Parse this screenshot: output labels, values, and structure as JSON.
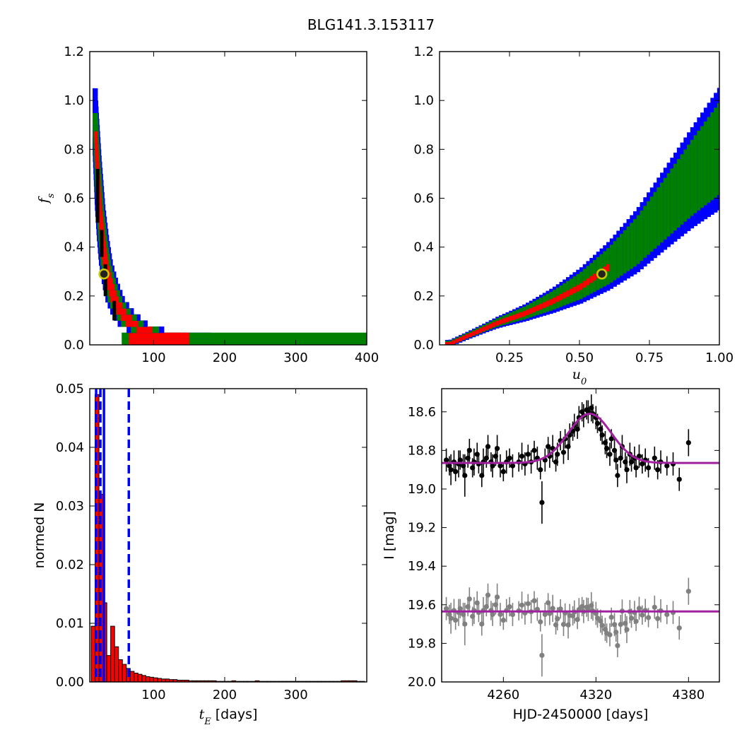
{
  "title": "BLG141.3.153117",
  "chart_data": [
    {
      "id": "fs-vs-tE",
      "type": "heatmap",
      "xlabel": "",
      "ylabel": "f_s",
      "ylabel_parts": {
        "main": "f",
        "sub": "s"
      },
      "xlim": [
        10,
        400
      ],
      "ylim": [
        0,
        1.2
      ],
      "xticks": [
        100,
        200,
        300,
        400
      ],
      "yticks": [
        0.0,
        0.2,
        0.4,
        0.6,
        0.8,
        1.0,
        1.2
      ],
      "colors": {
        "outer": "#0000ff",
        "middle": "#008000",
        "inner": "#ff0000",
        "core": "#000000"
      },
      "ridge": [
        [
          16,
          1.0
        ],
        [
          20,
          0.75
        ],
        [
          24,
          0.55
        ],
        [
          28,
          0.42
        ],
        [
          32,
          0.32
        ],
        [
          38,
          0.24
        ],
        [
          45,
          0.17
        ],
        [
          55,
          0.12
        ],
        [
          70,
          0.07
        ],
        [
          90,
          0.045
        ],
        [
          120,
          0.025
        ],
        [
          160,
          0.015
        ],
        [
          200,
          0.01
        ],
        [
          300,
          0.008
        ],
        [
          400,
          0.007
        ]
      ],
      "best_fit": {
        "x": 30,
        "y": 0.29
      }
    },
    {
      "id": "fs-vs-u0",
      "type": "heatmap",
      "xlabel": "u_0",
      "xlabel_parts": {
        "main": "u",
        "sub": "0"
      },
      "ylabel": "",
      "xlim": [
        0,
        1.0
      ],
      "ylim": [
        0,
        1.2
      ],
      "xticks": [
        0.25,
        0.5,
        0.75,
        1.0
      ],
      "xtick_labels": [
        "0.25",
        "0.50",
        "0.75",
        "1.00"
      ],
      "yticks": [
        0.0,
        0.2,
        0.4,
        0.6,
        0.8,
        1.0,
        1.2
      ],
      "colors": {
        "outer": "#0000ff",
        "middle": "#008000",
        "inner": "#ff0000"
      },
      "ridge_points": [
        [
          0.03,
          0.005
        ],
        [
          0.1,
          0.04
        ],
        [
          0.2,
          0.09
        ],
        [
          0.3,
          0.13
        ],
        [
          0.4,
          0.18
        ],
        [
          0.5,
          0.24
        ],
        [
          0.6,
          0.32
        ],
        [
          0.7,
          0.42
        ],
        [
          0.8,
          0.55
        ],
        [
          0.9,
          0.68
        ],
        [
          1.0,
          0.8
        ]
      ],
      "best_fit": {
        "x": 0.58,
        "y": 0.29
      }
    },
    {
      "id": "tE-histogram",
      "type": "bar",
      "xlabel": "t_E [days]",
      "xlabel_parts": {
        "main": "t",
        "sub": "E",
        "rest": " [days]"
      },
      "ylabel": "normed N",
      "xlim": [
        10,
        400
      ],
      "ylim": [
        0,
        0.05
      ],
      "xticks": [
        100,
        200,
        300
      ],
      "yticks": [
        0.0,
        0.01,
        0.02,
        0.03,
        0.04,
        0.05
      ],
      "ytick_labels": [
        "0.00",
        "0.01",
        "0.02",
        "0.03",
        "0.04",
        "0.05"
      ],
      "bin_width": 5.5,
      "bins_start": 12,
      "values": [
        0.0095,
        0.049,
        0.032,
        0.0135,
        0.0045,
        0.0095,
        0.006,
        0.0038,
        0.003,
        0.0023,
        0.0018,
        0.0015,
        0.0013,
        0.0011,
        0.0009,
        0.0008,
        0.0007,
        0.0006,
        0.0005,
        0.0005,
        0.0004,
        0.0004,
        0.0003,
        0.0003,
        0.0003,
        0.0002,
        0.0002,
        0.0002,
        0.0002,
        0.0002,
        0.0002,
        0.0002,
        0.0001,
        0.0001,
        0.0001,
        0.0001,
        0.0002,
        0.0001,
        0.0001,
        0.0001,
        0.0001,
        0.0001,
        0.0002,
        0.0001,
        0.0001,
        0.0001,
        0.0001,
        0.0001,
        0.0001,
        0.0001,
        0.0001,
        0.0001,
        0.0001,
        0.0001,
        0.0001,
        0.0001,
        0.0001,
        0.0001,
        0.0001,
        0.0001,
        0.0001,
        0.0001,
        0.0001,
        0.0001,
        0.0002,
        0.0002,
        0.0002,
        0.0002,
        0.0001,
        0.0001
      ],
      "bar_color": "#ff0000",
      "vlines": [
        {
          "x": 19,
          "style": "dashed",
          "color": "#0000ff"
        },
        {
          "x": 25,
          "style": "dashed",
          "color": "#0000ff"
        },
        {
          "x": 30,
          "style": "solid",
          "color": "#0000ff"
        },
        {
          "x": 65,
          "style": "dashed",
          "color": "#0000ff"
        }
      ]
    },
    {
      "id": "light-curve",
      "type": "scatter",
      "xlabel": "HJD-2450000 [days]",
      "ylabel": "I [mag]",
      "xlim": [
        4220,
        4400
      ],
      "ylim": [
        20.0,
        18.48
      ],
      "xticks": [
        4260,
        4320,
        4380
      ],
      "yticks": [
        18.6,
        18.8,
        19.0,
        19.2,
        19.4,
        19.6,
        19.8,
        20.0
      ],
      "ytick_labels": [
        "18.6",
        "18.8",
        "19.0",
        "19.2",
        "19.4",
        "19.6",
        "19.8",
        "20.0"
      ],
      "model": {
        "t0": 4316,
        "peak_mag": 18.61,
        "base_mag": 18.865,
        "width_days": 14,
        "color": "#a020a0"
      },
      "series": [
        {
          "color": "#000000",
          "offset": 0,
          "baseline_model": false
        },
        {
          "color": "#808080",
          "offset": 0.77,
          "baseline_model": true
        }
      ],
      "points": [
        [
          4223,
          18.85,
          0.06
        ],
        [
          4225,
          18.88,
          0.05
        ],
        [
          4226,
          18.9,
          0.08
        ],
        [
          4228,
          18.86,
          0.06
        ],
        [
          4229,
          18.91,
          0.05
        ],
        [
          4231,
          18.87,
          0.07
        ],
        [
          4232,
          18.85,
          0.05
        ],
        [
          4234,
          18.88,
          0.06
        ],
        [
          4235,
          18.93,
          0.11
        ],
        [
          4237,
          18.84,
          0.05
        ],
        [
          4238,
          18.8,
          0.06
        ],
        [
          4240,
          18.89,
          0.05
        ],
        [
          4241,
          18.86,
          0.07
        ],
        [
          4243,
          18.82,
          0.06
        ],
        [
          4244,
          18.87,
          0.05
        ],
        [
          4246,
          18.93,
          0.06
        ],
        [
          4247,
          18.86,
          0.07
        ],
        [
          4249,
          18.84,
          0.05
        ],
        [
          4250,
          18.78,
          0.06
        ],
        [
          4252,
          18.86,
          0.05
        ],
        [
          4253,
          18.88,
          0.06
        ],
        [
          4255,
          18.83,
          0.05
        ],
        [
          4256,
          18.79,
          0.07
        ],
        [
          4258,
          18.88,
          0.06
        ],
        [
          4260,
          18.91,
          0.05
        ],
        [
          4262,
          18.86,
          0.06
        ],
        [
          4264,
          18.84,
          0.05
        ],
        [
          4266,
          18.88,
          0.06
        ],
        [
          4270,
          18.86,
          0.05
        ],
        [
          4272,
          18.83,
          0.07
        ],
        [
          4274,
          18.87,
          0.06
        ],
        [
          4276,
          18.82,
          0.05
        ],
        [
          4278,
          18.86,
          0.06
        ],
        [
          4280,
          18.8,
          0.05
        ],
        [
          4282,
          18.84,
          0.06
        ],
        [
          4284,
          18.9,
          0.05
        ],
        [
          4285,
          19.07,
          0.11
        ],
        [
          4287,
          18.85,
          0.06
        ],
        [
          4289,
          18.78,
          0.05
        ],
        [
          4290,
          18.83,
          0.06
        ],
        [
          4292,
          18.79,
          0.07
        ],
        [
          4294,
          18.86,
          0.05
        ],
        [
          4295,
          18.82,
          0.06
        ],
        [
          4297,
          18.75,
          0.05
        ],
        [
          4299,
          18.81,
          0.06
        ],
        [
          4300,
          18.74,
          0.05
        ],
        [
          4302,
          18.78,
          0.07
        ],
        [
          4303,
          18.72,
          0.06
        ],
        [
          4305,
          18.7,
          0.05
        ],
        [
          4306,
          18.67,
          0.06
        ],
        [
          4308,
          18.69,
          0.05
        ],
        [
          4309,
          18.63,
          0.06
        ],
        [
          4311,
          18.6,
          0.05
        ],
        [
          4312,
          18.62,
          0.06
        ],
        [
          4314,
          18.59,
          0.05
        ],
        [
          4315,
          18.6,
          0.06
        ],
        [
          4317,
          18.58,
          0.07
        ],
        [
          4318,
          18.61,
          0.05
        ],
        [
          4320,
          18.63,
          0.06
        ],
        [
          4321,
          18.66,
          0.05
        ],
        [
          4323,
          18.69,
          0.06
        ],
        [
          4324,
          18.72,
          0.05
        ],
        [
          4326,
          18.76,
          0.06
        ],
        [
          4327,
          18.79,
          0.05
        ],
        [
          4329,
          18.82,
          0.06
        ],
        [
          4330,
          18.74,
          0.05
        ],
        [
          4332,
          18.8,
          0.06
        ],
        [
          4333,
          18.85,
          0.05
        ],
        [
          4334,
          18.93,
          0.06
        ],
        [
          4336,
          18.84,
          0.05
        ],
        [
          4337,
          18.78,
          0.06
        ],
        [
          4339,
          18.86,
          0.05
        ],
        [
          4340,
          18.9,
          0.07
        ],
        [
          4342,
          18.82,
          0.06
        ],
        [
          4343,
          18.86,
          0.05
        ],
        [
          4345,
          18.84,
          0.06
        ],
        [
          4346,
          18.89,
          0.05
        ],
        [
          4348,
          18.83,
          0.06
        ],
        [
          4350,
          18.87,
          0.05
        ],
        [
          4352,
          18.85,
          0.06
        ],
        [
          4354,
          18.89,
          0.05
        ],
        [
          4358,
          18.84,
          0.06
        ],
        [
          4360,
          18.9,
          0.05
        ],
        [
          4362,
          18.86,
          0.06
        ],
        [
          4366,
          18.88,
          0.05
        ],
        [
          4370,
          18.87,
          0.06
        ],
        [
          4374,
          18.95,
          0.06
        ],
        [
          4380,
          18.76,
          0.07
        ]
      ]
    }
  ]
}
